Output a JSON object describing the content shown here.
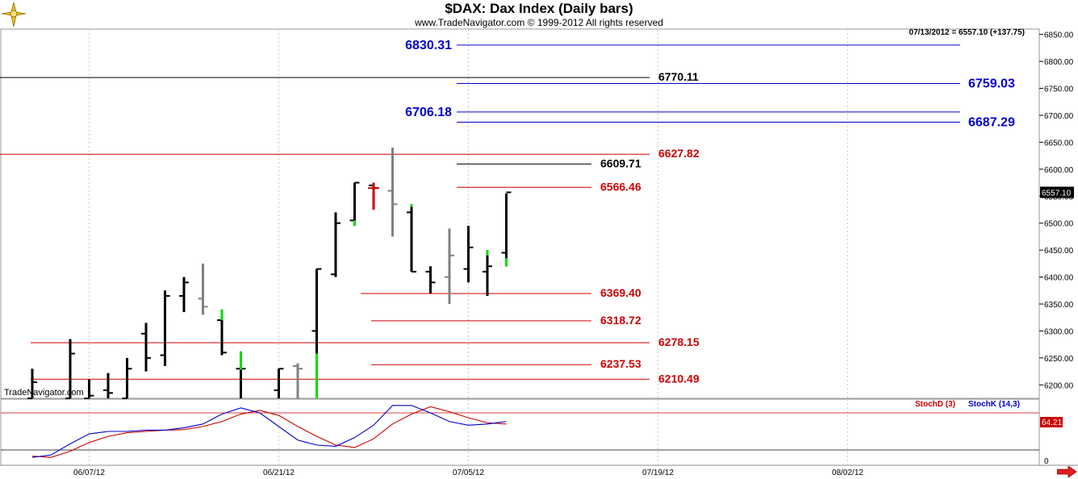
{
  "header": {
    "title": "$DAX:  Dax Index  (Daily bars)",
    "subtitle": "www.TradeNavigator.com © 1999-2012 All rights reserved",
    "last_quote": "07/13/2012 = 6557.10 (+137.75)",
    "watermark": "TradeNavigator.com"
  },
  "colors": {
    "up_bar": "#000000",
    "down_bar": "#808080",
    "gap_highlight": "#00dd00",
    "red_level": "#cc0000",
    "blue_level": "#0000cc",
    "black_level": "#000000",
    "stoch_d": "#cc0000",
    "stoch_k": "#0000cc"
  },
  "chart_data": [
    {
      "type": "ohlc",
      "title": "$DAX:  Dax Index  (Daily bars)",
      "ylim": [
        6175,
        6860
      ],
      "y_ticks": [
        "6200.00",
        "6250.00",
        "6300.00",
        "6350.00",
        "6400.00",
        "6450.00",
        "6500.00",
        "6550.00",
        "6600.00",
        "6650.00",
        "6700.00",
        "6750.00",
        "6800.00",
        "6850.00"
      ],
      "x_tick_labels": [
        {
          "date": "2012-06-07",
          "label": "06/07/12"
        },
        {
          "date": "2012-06-21",
          "label": "06/21/12"
        },
        {
          "date": "2012-07-05",
          "label": "07/05/12"
        },
        {
          "date": "2012-07-19",
          "label": "07/19/12"
        },
        {
          "date": "2012-08-02",
          "label": "08/02/12"
        }
      ],
      "last_price_label": "6557.10",
      "bars": [
        {
          "date": "2012-06-04",
          "open": 6175,
          "high": 6230,
          "low": 6175,
          "close": 6205,
          "color": "up"
        },
        {
          "date": "2012-06-06",
          "open": 6175,
          "high": 6285,
          "low": 6175,
          "close": 6258,
          "color": "up"
        },
        {
          "date": "2012-06-07",
          "open": 6175,
          "high": 6210,
          "low": 6175,
          "close": 6180,
          "color": "up"
        },
        {
          "date": "2012-06-08",
          "open": 6190,
          "high": 6222,
          "low": 6175,
          "close": 6185,
          "color": "up"
        },
        {
          "date": "2012-06-11",
          "open": 6175,
          "high": 6250,
          "low": 6175,
          "close": 6230,
          "color": "up"
        },
        {
          "date": "2012-06-12",
          "open": 6295,
          "high": 6315,
          "low": 6225,
          "close": 6250,
          "color": "up"
        },
        {
          "date": "2012-06-13",
          "open": 6255,
          "high": 6375,
          "low": 6235,
          "close": 6365,
          "color": "up"
        },
        {
          "date": "2012-06-14",
          "open": 6365,
          "high": 6400,
          "low": 6335,
          "close": 6390,
          "color": "up"
        },
        {
          "date": "2012-06-15",
          "open": 6360,
          "high": 6425,
          "low": 6330,
          "close": 6345,
          "color": "down"
        },
        {
          "date": "2012-06-18",
          "open": 6320,
          "high": 6340,
          "low": 6255,
          "close": 6260,
          "color": "up",
          "gap": [
            6320,
            6340
          ]
        },
        {
          "date": "2012-06-19",
          "open": 6230,
          "high": 6262,
          "low": 6175,
          "close": 6230,
          "color": "up",
          "gap": [
            6228,
            6262
          ]
        },
        {
          "date": "2012-06-21",
          "open": 6190,
          "high": 6230,
          "low": 6175,
          "close": 6230,
          "color": "up"
        },
        {
          "date": "2012-06-22",
          "open": 6235,
          "high": 6240,
          "low": 6175,
          "close": 6230,
          "color": "down"
        },
        {
          "date": "2012-06-25",
          "open": 6300,
          "high": 6415,
          "low": 6175,
          "close": 6415,
          "color": "up",
          "gap": [
            6175,
            6258
          ]
        },
        {
          "date": "2012-06-26",
          "open": 6405,
          "high": 6520,
          "low": 6400,
          "close": 6500,
          "color": "up"
        },
        {
          "date": "2012-06-27",
          "open": 6505,
          "high": 6575,
          "low": 6495,
          "close": 6575,
          "color": "up",
          "gap": [
            6495,
            6505
          ]
        },
        {
          "date": "2012-06-28",
          "open": 6570,
          "high": 6575,
          "low": 6525,
          "close": 6565,
          "color": "up",
          "gap": [
            6570,
            6575
          ],
          "highlight": "red"
        },
        {
          "date": "2012-06-29",
          "open": 6560,
          "high": 6640,
          "low": 6475,
          "close": 6535,
          "color": "down"
        },
        {
          "date": "2012-07-02",
          "open": 6520,
          "high": 6535,
          "low": 6410,
          "close": 6410,
          "color": "up",
          "gap": [
            6530,
            6535
          ]
        },
        {
          "date": "2012-07-03",
          "open": 6410,
          "high": 6420,
          "low": 6370,
          "close": 6390,
          "color": "up"
        },
        {
          "date": "2012-07-04",
          "open": 6400,
          "high": 6490,
          "low": 6350,
          "close": 6440,
          "color": "down"
        },
        {
          "date": "2012-07-05",
          "open": 6415,
          "high": 6495,
          "low": 6390,
          "close": 6455,
          "color": "up"
        },
        {
          "date": "2012-07-06",
          "open": 6410,
          "high": 6450,
          "low": 6365,
          "close": 6420,
          "color": "up",
          "gap": [
            6440,
            6450
          ]
        },
        {
          "date": "2012-07-09",
          "open": 6445,
          "high": 6555,
          "low": 6420,
          "close": 6557.1,
          "color": "up",
          "gap": [
            6420,
            6435
          ]
        }
      ],
      "levels": [
        {
          "value": 6830.31,
          "label": "6830.31",
          "color": "blue"
        },
        {
          "value": 6770.11,
          "label": "6770.11",
          "color": "black"
        },
        {
          "value": 6759.03,
          "label": "6759.03",
          "color": "blue"
        },
        {
          "value": 6706.18,
          "label": "6706.18",
          "color": "blue"
        },
        {
          "value": 6687.29,
          "label": "6687.29",
          "color": "blue"
        },
        {
          "value": 6627.82,
          "label": "6627.82",
          "color": "red"
        },
        {
          "value": 6609.71,
          "label": "6609.71",
          "color": "black"
        },
        {
          "value": 6566.46,
          "label": "6566.46",
          "color": "red"
        },
        {
          "value": 6369.4,
          "label": "6369.40",
          "color": "red"
        },
        {
          "value": 6318.72,
          "label": "6318.72",
          "color": "red"
        },
        {
          "value": 6278.15,
          "label": "6278.15",
          "color": "red"
        },
        {
          "value": 6237.53,
          "label": "6237.53",
          "color": "red"
        },
        {
          "value": 6210.49,
          "label": "6210.49",
          "color": "red"
        }
      ]
    },
    {
      "type": "line",
      "title": "",
      "legend": [
        "StochD (3)",
        "StochK (14,3)"
      ],
      "y_tick_labels": [
        "0"
      ],
      "ylim": [
        0,
        100
      ],
      "reference_lines": [
        80,
        20
      ],
      "last_value_label": "64.21",
      "x": [
        "2012-06-04",
        "2012-06-05",
        "2012-06-06",
        "2012-06-07",
        "2012-06-08",
        "2012-06-11",
        "2012-06-12",
        "2012-06-13",
        "2012-06-14",
        "2012-06-15",
        "2012-06-18",
        "2012-06-19",
        "2012-06-20",
        "2012-06-21",
        "2012-06-22",
        "2012-06-25",
        "2012-06-26",
        "2012-06-27",
        "2012-06-28",
        "2012-06-29",
        "2012-07-02",
        "2012-07-03",
        "2012-07-04",
        "2012-07-05",
        "2012-07-06",
        "2012-07-09"
      ],
      "series": [
        {
          "name": "StochD (3)",
          "color": "red",
          "values": [
            10,
            8,
            18,
            32,
            42,
            48,
            50,
            52,
            53,
            58,
            66,
            78,
            84,
            76,
            58,
            42,
            28,
            24,
            38,
            62,
            78,
            90,
            82,
            72,
            64,
            62
          ]
        },
        {
          "name": "StochK (14,3)",
          "color": "blue",
          "values": [
            8,
            12,
            30,
            46,
            50,
            50,
            52,
            52,
            56,
            62,
            78,
            88,
            80,
            58,
            36,
            28,
            26,
            40,
            60,
            92,
            92,
            80,
            66,
            60,
            62,
            66
          ]
        }
      ]
    }
  ]
}
